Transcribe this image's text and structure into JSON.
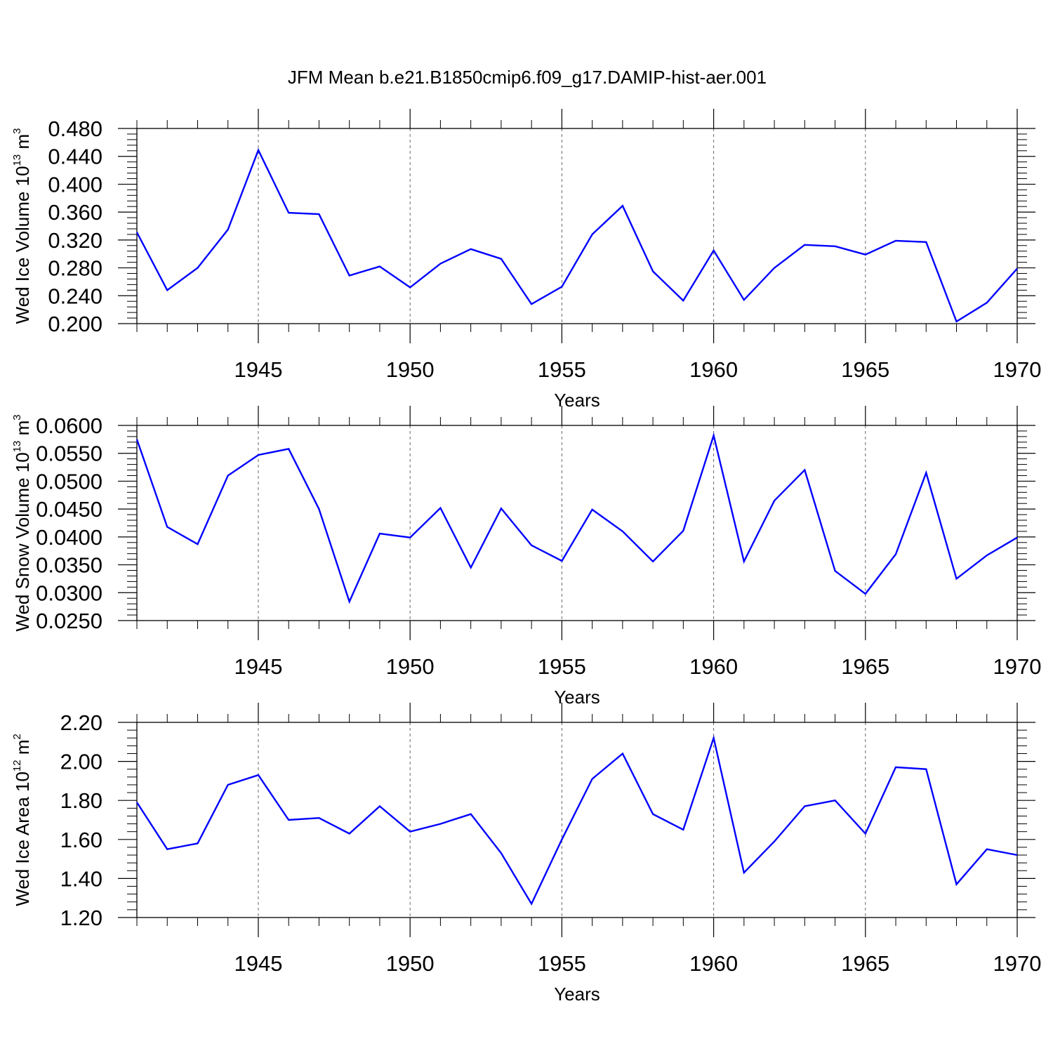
{
  "chart_data": {
    "title": "JFM Mean b.e21.B1850cmip6.f09_g17.DAMIP-hist-aer.001",
    "line_color": "#0000ff",
    "grid_color": "#666666",
    "years": [
      1941,
      1942,
      1943,
      1944,
      1945,
      1946,
      1947,
      1948,
      1949,
      1950,
      1951,
      1952,
      1953,
      1954,
      1955,
      1956,
      1957,
      1958,
      1959,
      1960,
      1961,
      1962,
      1963,
      1964,
      1965,
      1966,
      1967,
      1968,
      1969,
      1970
    ],
    "panels": [
      {
        "type": "line",
        "name": "ice-volume",
        "ylabel": {
          "prefix": "Wed Ice Volume 10",
          "exp": "13",
          "mid": " m",
          "unit_exp": "3"
        },
        "xlabel": "Years",
        "xlim": [
          1941,
          1970
        ],
        "ylim": [
          0.2,
          0.48
        ],
        "yticks": [
          0.2,
          0.24,
          0.28,
          0.32,
          0.36,
          0.4,
          0.44,
          0.48
        ],
        "ytick_labels": [
          "0.200",
          "0.240",
          "0.280",
          "0.320",
          "0.360",
          "0.400",
          "0.440",
          "0.480"
        ],
        "xticks": [
          1945,
          1950,
          1955,
          1960,
          1965,
          1970
        ],
        "xtick_labels": [
          "1945",
          "1950",
          "1955",
          "1960",
          "1965",
          "1970"
        ],
        "values": [
          0.331,
          0.248,
          0.28,
          0.335,
          0.449,
          0.359,
          0.357,
          0.269,
          0.282,
          0.252,
          0.286,
          0.307,
          0.293,
          0.228,
          0.253,
          0.328,
          0.369,
          0.275,
          0.233,
          0.305,
          0.234,
          0.28,
          0.313,
          0.311,
          0.299,
          0.319,
          0.317,
          0.203,
          0.23,
          0.279
        ]
      },
      {
        "type": "line",
        "name": "snow-volume",
        "ylabel": {
          "prefix": "Wed Snow Volume 10",
          "exp": "13",
          "mid": " m",
          "unit_exp": "3"
        },
        "xlabel": "Years",
        "xlim": [
          1941,
          1970
        ],
        "ylim": [
          0.025,
          0.06
        ],
        "yticks": [
          0.025,
          0.03,
          0.035,
          0.04,
          0.045,
          0.05,
          0.055,
          0.06
        ],
        "ytick_labels": [
          "0.0250",
          "0.0300",
          "0.0350",
          "0.0400",
          "0.0450",
          "0.0500",
          "0.0550",
          "0.0600"
        ],
        "xticks": [
          1945,
          1950,
          1955,
          1960,
          1965,
          1970
        ],
        "xtick_labels": [
          "1945",
          "1950",
          "1955",
          "1960",
          "1965",
          "1970"
        ],
        "values": [
          0.0575,
          0.0418,
          0.0387,
          0.051,
          0.0547,
          0.0558,
          0.045,
          0.0284,
          0.0406,
          0.0399,
          0.0452,
          0.0345,
          0.0451,
          0.0385,
          0.0357,
          0.0449,
          0.041,
          0.0356,
          0.0411,
          0.0582,
          0.0356,
          0.0465,
          0.052,
          0.0339,
          0.0298,
          0.0369,
          0.0515,
          0.0325,
          0.0367,
          0.0399
        ]
      },
      {
        "type": "line",
        "name": "ice-area",
        "ylabel": {
          "prefix": "Wed Ice Area 10",
          "exp": "12",
          "mid": " m",
          "unit_exp": "2"
        },
        "xlabel": "Years",
        "xlim": [
          1941,
          1970
        ],
        "ylim": [
          1.2,
          2.2
        ],
        "yticks": [
          1.2,
          1.4,
          1.6,
          1.8,
          2.0,
          2.2
        ],
        "ytick_labels": [
          "1.20",
          "1.40",
          "1.60",
          "1.80",
          "2.00",
          "2.20"
        ],
        "xticks": [
          1945,
          1950,
          1955,
          1960,
          1965,
          1970
        ],
        "xtick_labels": [
          "1945",
          "1950",
          "1955",
          "1960",
          "1965",
          "1970"
        ],
        "values": [
          1.79,
          1.55,
          1.58,
          1.88,
          1.93,
          1.7,
          1.71,
          1.63,
          1.77,
          1.64,
          1.68,
          1.73,
          1.53,
          1.27,
          1.6,
          1.91,
          2.04,
          1.73,
          1.65,
          2.12,
          1.43,
          1.59,
          1.77,
          1.8,
          1.63,
          1.97,
          1.96,
          1.37,
          1.55,
          1.52
        ]
      }
    ]
  }
}
